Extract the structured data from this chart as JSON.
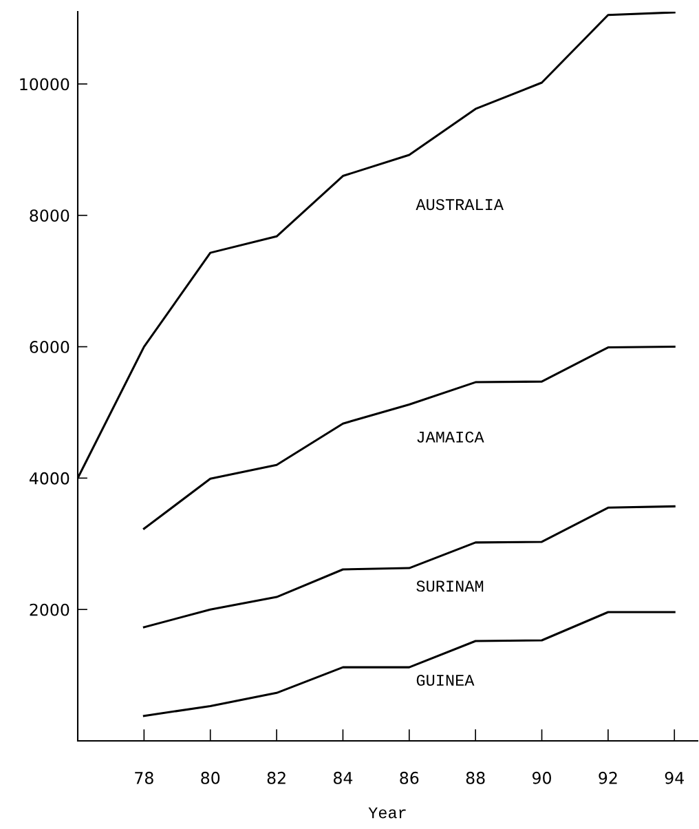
{
  "chart_data": {
    "type": "line",
    "xlabel": "Year",
    "xlim": [
      76,
      94.7
    ],
    "ylim": [
      0,
      11100
    ],
    "xticks": [
      {
        "value": 78,
        "label": "78"
      },
      {
        "value": 80,
        "label": "80"
      },
      {
        "value": 82,
        "label": "82"
      },
      {
        "value": 84,
        "label": "84"
      },
      {
        "value": 86,
        "label": "86"
      },
      {
        "value": 88,
        "label": "88"
      },
      {
        "value": 90,
        "label": "90"
      },
      {
        "value": 92,
        "label": "92"
      },
      {
        "value": 94,
        "label": "94"
      }
    ],
    "yticks": [
      2000,
      4000,
      6000,
      8000,
      10000
    ],
    "grid": false,
    "legend": false,
    "marker": "none",
    "line_style": "solid",
    "series": [
      {
        "name": "AUSTRALIA",
        "color": "#000000",
        "x": [
          76,
          78,
          80,
          82,
          84,
          86,
          88,
          90,
          92,
          94
        ],
        "values": [
          4000,
          6000,
          7430,
          7680,
          8600,
          8920,
          9620,
          10020,
          11050,
          11090
        ]
      },
      {
        "name": "JAMAICA",
        "color": "#000000",
        "x": [
          78,
          80,
          82,
          84,
          86,
          88,
          90,
          92,
          94
        ],
        "values": [
          3230,
          3990,
          4200,
          4830,
          5120,
          5460,
          5470,
          5990,
          6000
        ]
      },
      {
        "name": "SURINAM",
        "color": "#000000",
        "x": [
          78,
          80,
          82,
          84,
          86,
          88,
          90,
          92,
          94
        ],
        "values": [
          1730,
          2000,
          2190,
          2610,
          2630,
          3020,
          3030,
          3550,
          3570
        ]
      },
      {
        "name": "GUINEA",
        "color": "#000000",
        "x": [
          78,
          80,
          82,
          84,
          86,
          88,
          90,
          92,
          94
        ],
        "values": [
          380,
          530,
          730,
          1120,
          1120,
          1520,
          1530,
          1960,
          1960
        ]
      }
    ]
  }
}
